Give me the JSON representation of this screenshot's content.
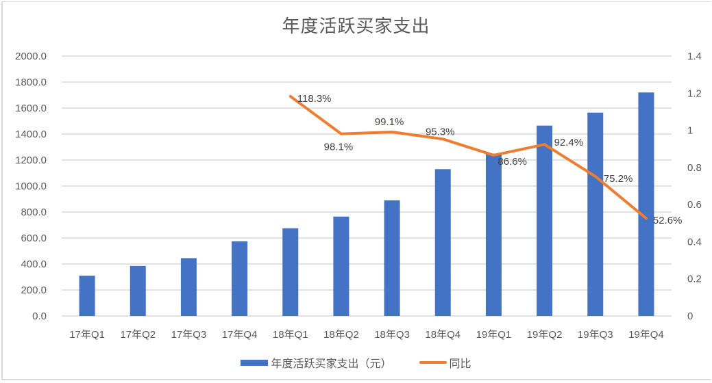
{
  "chart_data": {
    "type": "bar+line",
    "title": "年度活跃买家支出",
    "categories": [
      "17年Q1",
      "17年Q2",
      "17年Q3",
      "17年Q4",
      "18年Q1",
      "18年Q2",
      "18年Q3",
      "18年Q4",
      "19年Q1",
      "19年Q2",
      "19年Q3",
      "19年Q4"
    ],
    "series": [
      {
        "name": "年度活跃买家支出（元）",
        "type": "bar",
        "axis": "left",
        "color": "#4472c4",
        "values": [
          310,
          385,
          445,
          575,
          675,
          765,
          890,
          1130,
          1250,
          1465,
          1565,
          1720
        ]
      },
      {
        "name": "同比",
        "type": "line",
        "axis": "right",
        "color": "#ed7d31",
        "values": [
          null,
          null,
          null,
          null,
          1.183,
          0.981,
          0.991,
          0.953,
          0.866,
          0.924,
          0.752,
          0.526
        ],
        "labels": [
          null,
          null,
          null,
          null,
          "118.3%",
          "98.1%",
          "99.1%",
          "95.3%",
          "86.6%",
          "92.4%",
          "75.2%",
          "52.6%"
        ]
      }
    ],
    "left_axis": {
      "min": 0,
      "max": 2000,
      "step": 200,
      "ticks": [
        "0.0",
        "200.0",
        "400.0",
        "600.0",
        "800.0",
        "1000.0",
        "1200.0",
        "1400.0",
        "1600.0",
        "1800.0",
        "2000.0"
      ]
    },
    "right_axis": {
      "min": 0,
      "max": 1.4,
      "step": 0.2,
      "ticks": [
        "0",
        "0.2",
        "0.4",
        "0.6",
        "0.8",
        "1",
        "1.2",
        "1.4"
      ]
    },
    "grid": true,
    "legend_position": "bottom",
    "xlabel": "",
    "ylabel": ""
  },
  "legend": {
    "bar_label": "年度活跃买家支出（元）",
    "line_label": "同比"
  }
}
